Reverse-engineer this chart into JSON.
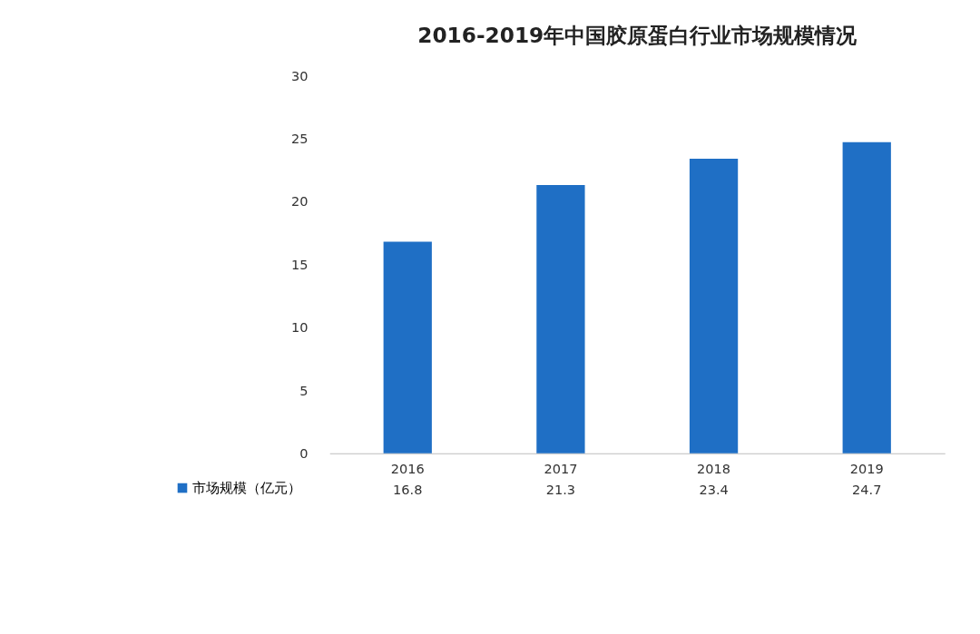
{
  "chart_data": {
    "type": "bar",
    "title": "2016-2019年中国胶原蛋白行业市场规模情况",
    "categories": [
      "2016",
      "2017",
      "2018",
      "2019"
    ],
    "series": [
      {
        "name": "市场规模（亿元）",
        "color": "#1f6fc5",
        "values": [
          16.8,
          21.3,
          23.4,
          24.7
        ]
      }
    ],
    "ylim": [
      0,
      30
    ],
    "yticks": [
      0,
      5,
      10,
      15,
      20,
      25,
      30
    ],
    "grid": false,
    "legend": "bottom left",
    "data_labels": true
  }
}
